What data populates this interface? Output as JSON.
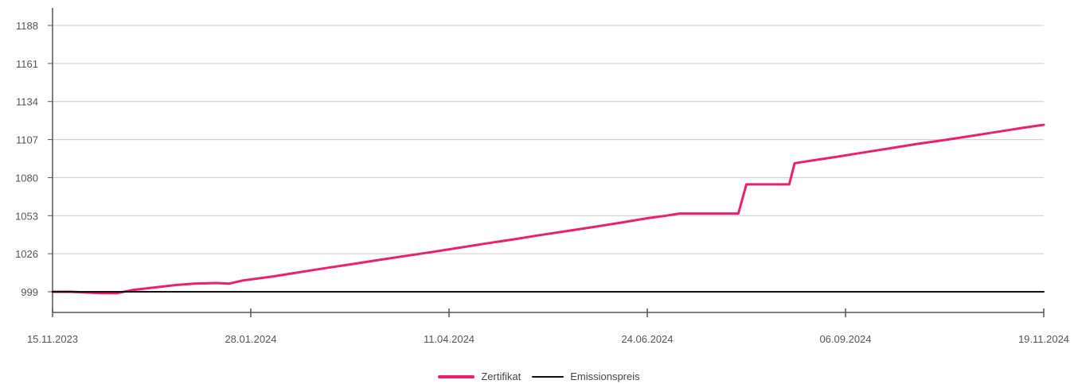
{
  "chart_data": {
    "type": "line",
    "ylabel": "",
    "xlabel": "",
    "ylim": [
      985,
      1200
    ],
    "y_ticks": [
      "999",
      "1026",
      "1053",
      "1080",
      "1107",
      "1134",
      "1161",
      "1188"
    ],
    "x_ticks": [
      "15.11.2023",
      "28.01.2024",
      "11.04.2024",
      "24.06.2024",
      "06.09.2024",
      "19.11.2024"
    ],
    "x_range": [
      "2023-11-15",
      "2024-11-19"
    ],
    "grid": true,
    "legend_position": "bottom",
    "series": [
      {
        "name": "Zertifikat",
        "color": "#ee1f6b",
        "points": [
          [
            "2023-11-15",
            999.0
          ],
          [
            "2023-11-22",
            999.0
          ],
          [
            "2023-11-29",
            998.4
          ],
          [
            "2023-12-04",
            998.0
          ],
          [
            "2023-12-09",
            998.0
          ],
          [
            "2023-12-15",
            1000.3
          ],
          [
            "2023-12-22",
            1001.8
          ],
          [
            "2023-12-31",
            1003.8
          ],
          [
            "2024-01-07",
            1004.8
          ],
          [
            "2024-01-15",
            1005.2
          ],
          [
            "2024-01-20",
            1004.8
          ],
          [
            "2024-01-25",
            1007.0
          ],
          [
            "2024-02-05",
            1009.8
          ],
          [
            "2024-02-15",
            1012.8
          ],
          [
            "2024-02-25",
            1015.8
          ],
          [
            "2024-03-06",
            1018.7
          ],
          [
            "2024-03-16",
            1021.6
          ],
          [
            "2024-03-26",
            1024.5
          ],
          [
            "2024-04-05",
            1027.3
          ],
          [
            "2024-04-15",
            1030.3
          ],
          [
            "2024-04-25",
            1033.3
          ],
          [
            "2024-05-05",
            1036.2
          ],
          [
            "2024-05-15",
            1039.2
          ],
          [
            "2024-05-25",
            1042.1
          ],
          [
            "2024-06-04",
            1045.0
          ],
          [
            "2024-06-14",
            1048.0
          ],
          [
            "2024-06-24",
            1051.2
          ],
          [
            "2024-07-01",
            1053.0
          ],
          [
            "2024-07-06",
            1054.5
          ],
          [
            "2024-07-28",
            1054.5
          ],
          [
            "2024-07-31",
            1075.2
          ],
          [
            "2024-08-16",
            1075.2
          ],
          [
            "2024-08-18",
            1090.2
          ],
          [
            "2024-08-23",
            1091.7
          ],
          [
            "2024-09-02",
            1094.6
          ],
          [
            "2024-09-12",
            1097.6
          ],
          [
            "2024-09-22",
            1100.6
          ],
          [
            "2024-10-02",
            1103.7
          ],
          [
            "2024-10-12",
            1106.4
          ],
          [
            "2024-10-22",
            1109.3
          ],
          [
            "2024-11-01",
            1112.3
          ],
          [
            "2024-11-11",
            1115.3
          ],
          [
            "2024-11-19",
            1117.5
          ]
        ]
      },
      {
        "name": "Emissionspreis",
        "color": "#111111",
        "points": [
          [
            "2023-11-15",
            999.0
          ],
          [
            "2024-11-19",
            999.0
          ]
        ]
      }
    ]
  },
  "legend": {
    "item1_label": "Zertifikat",
    "item2_label": "Emissionspreis"
  }
}
